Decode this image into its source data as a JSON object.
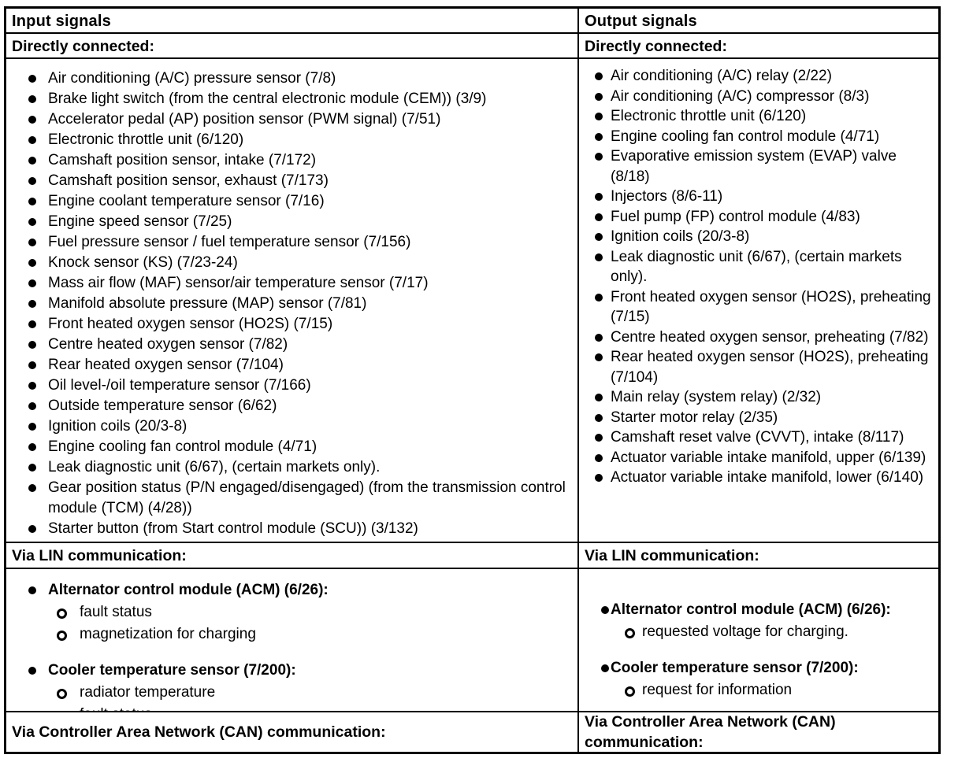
{
  "page": {
    "input": {
      "header": "Input signals",
      "directly_connected": {
        "label": "Directly connected:",
        "items": [
          "Air conditioning (A/C) pressure sensor (7/8)",
          "Brake light switch (from the central electronic module (CEM)) (3/9)",
          "Accelerator pedal (AP) position sensor (PWM signal) (7/51)",
          "Electronic throttle unit (6/120)",
          "Camshaft position sensor, intake (7/172)",
          "Camshaft position sensor, exhaust (7/173)",
          "Engine coolant temperature sensor (7/16)",
          "Engine speed sensor (7/25)",
          "Fuel pressure sensor / fuel temperature sensor (7/156)",
          "Knock sensor (KS) (7/23-24)",
          "Mass air flow (MAF) sensor/air temperature sensor (7/17)",
          "Manifold absolute pressure (MAP) sensor (7/81)",
          "Front heated oxygen sensor (HO2S) (7/15)",
          "Centre heated oxygen sensor (7/82)",
          "Rear heated oxygen sensor (7/104)",
          "Oil level-/oil temperature sensor (7/166)",
          "Outside temperature sensor (6/62)",
          "Ignition coils (20/3-8)",
          "Engine cooling fan control module (4/71)",
          "Leak diagnostic unit (6/67), (certain markets only).",
          "Gear position status (P/N engaged/disengaged) (from the transmission control module (TCM) (4/28))",
          "Starter button (from Start control module (SCU)) (3/132)"
        ]
      },
      "lin": {
        "label": "Via LIN communication:",
        "groups": [
          {
            "title": "Alternator control module (ACM) (6/26):",
            "items": [
              "fault status",
              "magnetization for charging"
            ]
          },
          {
            "title": "Cooler temperature sensor (7/200):",
            "items": [
              "radiator temperature",
              "fault status"
            ]
          }
        ]
      },
      "can": {
        "label": "Via Controller Area Network (CAN) communication:"
      }
    },
    "output": {
      "header": "Output signals",
      "directly_connected": {
        "label": "Directly connected:",
        "items": [
          "Air conditioning (A/C) relay (2/22)",
          "Air conditioning (A/C) compressor (8/3)",
          "Electronic throttle unit (6/120)",
          "Engine cooling fan control module (4/71)",
          "Evaporative emission system (EVAP) valve (8/18)",
          "Injectors (8/6-11)",
          "Fuel pump (FP) control module (4/83)",
          "Ignition coils (20/3-8)",
          "Leak diagnostic unit (6/67), (certain markets only).",
          "Front heated oxygen sensor (HO2S), preheating (7/15)",
          "Centre heated oxygen sensor, preheating (7/82)",
          "Rear heated oxygen sensor (HO2S), preheating (7/104)",
          "Main relay (system relay) (2/32)",
          "Starter motor relay (2/35)",
          "Camshaft reset valve (CVVT), intake (8/117)",
          "Actuator variable intake manifold, upper (6/139)",
          "Actuator variable intake manifold, lower (6/140)"
        ]
      },
      "lin": {
        "label": "Via LIN communication:",
        "groups": [
          {
            "title": "Alternator control module (ACM) (6/26):",
            "items": [
              "requested voltage for charging."
            ]
          },
          {
            "title": "Cooler temperature sensor (7/200):",
            "items": [
              "request for information"
            ]
          }
        ]
      },
      "can": {
        "label": "Via Controller Area Network (CAN) communication:"
      }
    },
    "colors": {
      "border": "#000000",
      "text": "#000000",
      "background": "#ffffff"
    }
  }
}
